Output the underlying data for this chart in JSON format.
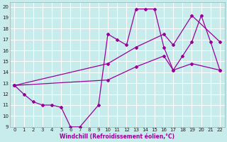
{
  "xlabel": "Windchill (Refroidissement éolien,°C)",
  "bg_color": "#c8ecec",
  "grid_color": "#ffffff",
  "line_color": "#990099",
  "xlim": [
    -0.5,
    22.5
  ],
  "ylim": [
    9,
    20.4
  ],
  "xticks": [
    0,
    1,
    2,
    3,
    4,
    5,
    6,
    7,
    8,
    9,
    10,
    11,
    12,
    13,
    14,
    15,
    16,
    17,
    18,
    19,
    20,
    21,
    22
  ],
  "yticks": [
    9,
    10,
    11,
    12,
    13,
    14,
    15,
    16,
    17,
    18,
    19,
    20
  ],
  "series_zigzag": {
    "x": [
      0,
      1,
      2,
      3,
      4,
      5,
      6,
      7,
      9,
      10,
      11,
      12,
      13,
      14,
      15,
      16,
      17,
      18,
      19,
      20,
      21,
      22
    ],
    "y": [
      12.8,
      12.0,
      11.3,
      11.0,
      11.0,
      10.8,
      9.0,
      9.0,
      11.0,
      17.5,
      17.0,
      16.5,
      19.8,
      19.8,
      19.8,
      16.3,
      14.2,
      15.5,
      16.8,
      19.2,
      16.8,
      14.2
    ]
  },
  "series_line2": {
    "x": [
      0,
      10,
      13,
      16,
      17,
      19,
      22
    ],
    "y": [
      12.8,
      14.8,
      16.3,
      17.5,
      16.5,
      19.2,
      16.8
    ]
  },
  "series_line3": {
    "x": [
      0,
      10,
      13,
      16,
      17,
      19,
      22
    ],
    "y": [
      12.8,
      13.3,
      14.5,
      15.5,
      14.2,
      14.8,
      14.2
    ]
  }
}
